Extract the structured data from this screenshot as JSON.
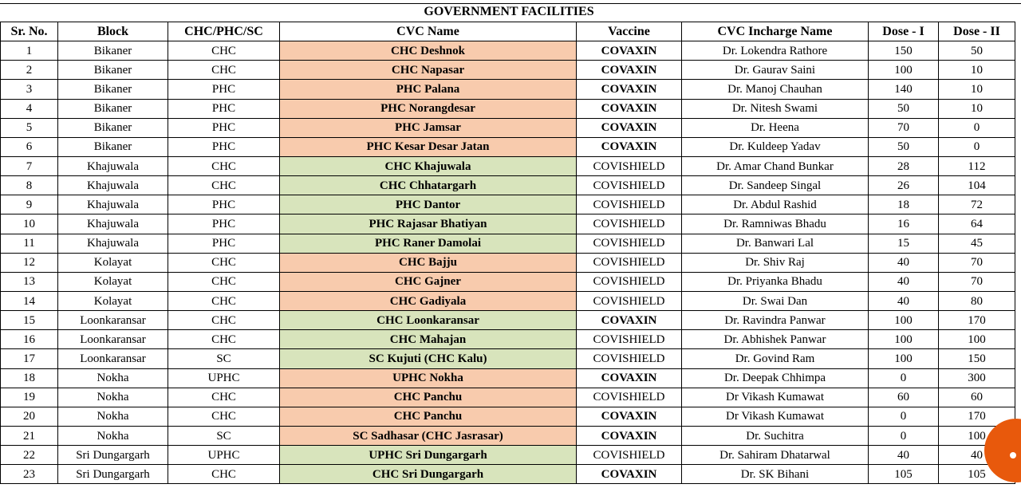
{
  "title": "GOVERNMENT FACILITIES",
  "headers": [
    "Sr. No.",
    "Block",
    "CHC/PHC/SC",
    "CVC Name",
    "Vaccine",
    "CVC Incharge Name",
    "Dose - I",
    "Dose - II"
  ],
  "colors": {
    "orange": "#f8cbad",
    "green": "#d8e4bc",
    "fab": "#e8590c"
  },
  "fab_icon": "share-icon",
  "rows": [
    {
      "sr": "1",
      "block": "Bikaner",
      "type": "CHC",
      "cvc": "CHC Deshnok",
      "vaccine": "COVAXIN",
      "incharge": "Dr. Lokendra Rathore",
      "d1": "150",
      "d2": "50",
      "shade": "orange"
    },
    {
      "sr": "2",
      "block": "Bikaner",
      "type": "CHC",
      "cvc": "CHC Napasar",
      "vaccine": "COVAXIN",
      "incharge": "Dr. Gaurav Saini",
      "d1": "100",
      "d2": "10",
      "shade": "orange"
    },
    {
      "sr": "3",
      "block": "Bikaner",
      "type": "PHC",
      "cvc": "PHC Palana",
      "vaccine": "COVAXIN",
      "incharge": "Dr. Manoj Chauhan",
      "d1": "140",
      "d2": "10",
      "shade": "orange"
    },
    {
      "sr": "4",
      "block": "Bikaner",
      "type": "PHC",
      "cvc": "PHC Norangdesar",
      "vaccine": "COVAXIN",
      "incharge": "Dr. Nitesh Swami",
      "d1": "50",
      "d2": "10",
      "shade": "orange"
    },
    {
      "sr": "5",
      "block": "Bikaner",
      "type": "PHC",
      "cvc": "PHC Jamsar",
      "vaccine": "COVAXIN",
      "incharge": "Dr. Heena",
      "d1": "70",
      "d2": "0",
      "shade": "orange"
    },
    {
      "sr": "6",
      "block": "Bikaner",
      "type": "PHC",
      "cvc": "PHC Kesar Desar Jatan",
      "vaccine": "COVAXIN",
      "incharge": "Dr. Kuldeep Yadav",
      "d1": "50",
      "d2": "0",
      "shade": "orange"
    },
    {
      "sr": "7",
      "block": "Khajuwala",
      "type": "CHC",
      "cvc": "CHC Khajuwala",
      "vaccine": "COVISHIELD",
      "incharge": "Dr. Amar Chand Bunkar",
      "d1": "28",
      "d2": "112",
      "shade": "green"
    },
    {
      "sr": "8",
      "block": "Khajuwala",
      "type": "CHC",
      "cvc": "CHC Chhatargarh",
      "vaccine": "COVISHIELD",
      "incharge": "Dr. Sandeep Singal",
      "d1": "26",
      "d2": "104",
      "shade": "green"
    },
    {
      "sr": "9",
      "block": "Khajuwala",
      "type": "PHC",
      "cvc": "PHC Dantor",
      "vaccine": "COVISHIELD",
      "incharge": "Dr. Abdul Rashid",
      "d1": "18",
      "d2": "72",
      "shade": "green"
    },
    {
      "sr": "10",
      "block": "Khajuwala",
      "type": "PHC",
      "cvc": "PHC Rajasar Bhatiyan",
      "vaccine": "COVISHIELD",
      "incharge": "Dr. Ramniwas Bhadu",
      "d1": "16",
      "d2": "64",
      "shade": "green"
    },
    {
      "sr": "11",
      "block": "Khajuwala",
      "type": "PHC",
      "cvc": "PHC Raner Damolai",
      "vaccine": "COVISHIELD",
      "incharge": "Dr. Banwari Lal",
      "d1": "15",
      "d2": "45",
      "shade": "green"
    },
    {
      "sr": "12",
      "block": "Kolayat",
      "type": "CHC",
      "cvc": "CHC Bajju",
      "vaccine": "COVISHIELD",
      "incharge": "Dr. Shiv Raj",
      "d1": "40",
      "d2": "70",
      "shade": "orange"
    },
    {
      "sr": "13",
      "block": "Kolayat",
      "type": "CHC",
      "cvc": "CHC Gajner",
      "vaccine": "COVISHIELD",
      "incharge": "Dr. Priyanka Bhadu",
      "d1": "40",
      "d2": "70",
      "shade": "orange"
    },
    {
      "sr": "14",
      "block": "Kolayat",
      "type": "CHC",
      "cvc": "CHC Gadiyala",
      "vaccine": "COVISHIELD",
      "incharge": "Dr. Swai Dan",
      "d1": "40",
      "d2": "80",
      "shade": "orange"
    },
    {
      "sr": "15",
      "block": "Loonkaransar",
      "type": "CHC",
      "cvc": "CHC Loonkaransar",
      "vaccine": "COVAXIN",
      "incharge": "Dr. Ravindra Panwar",
      "d1": "100",
      "d2": "170",
      "shade": "green"
    },
    {
      "sr": "16",
      "block": "Loonkaransar",
      "type": "CHC",
      "cvc": "CHC Mahajan",
      "vaccine": "COVISHIELD",
      "incharge": "Dr. Abhishek Panwar",
      "d1": "100",
      "d2": "100",
      "shade": "green"
    },
    {
      "sr": "17",
      "block": "Loonkaransar",
      "type": "SC",
      "cvc": "SC Kujuti (CHC Kalu)",
      "vaccine": "COVISHIELD",
      "incharge": "Dr. Govind Ram",
      "d1": "100",
      "d2": "150",
      "shade": "green"
    },
    {
      "sr": "18",
      "block": "Nokha",
      "type": "UPHC",
      "cvc": "UPHC Nokha",
      "vaccine": "COVAXIN",
      "incharge": "Dr. Deepak Chhimpa",
      "d1": "0",
      "d2": "300",
      "shade": "orange"
    },
    {
      "sr": "19",
      "block": "Nokha",
      "type": "CHC",
      "cvc": "CHC Panchu",
      "vaccine": "COVISHIELD",
      "incharge": "Dr Vikash Kumawat",
      "d1": "60",
      "d2": "60",
      "shade": "orange"
    },
    {
      "sr": "20",
      "block": "Nokha",
      "type": "CHC",
      "cvc": "CHC Panchu",
      "vaccine": "COVAXIN",
      "incharge": "Dr Vikash Kumawat",
      "d1": "0",
      "d2": "170",
      "shade": "orange"
    },
    {
      "sr": "21",
      "block": "Nokha",
      "type": "SC",
      "cvc": "SC Sadhasar (CHC Jasrasar)",
      "vaccine": "COVAXIN",
      "incharge": "Dr. Suchitra",
      "d1": "0",
      "d2": "100",
      "shade": "orange"
    },
    {
      "sr": "22",
      "block": "Sri Dungargarh",
      "type": "UPHC",
      "cvc": "UPHC Sri Dungargarh",
      "vaccine": "COVISHIELD",
      "incharge": "Dr. Sahiram Dhatarwal",
      "d1": "40",
      "d2": "40",
      "shade": "green"
    },
    {
      "sr": "23",
      "block": "Sri Dungargarh",
      "type": "CHC",
      "cvc": "CHC Sri Dungargarh",
      "vaccine": "COVAXIN",
      "incharge": "Dr. SK Bihani",
      "d1": "105",
      "d2": "105",
      "shade": "green"
    }
  ]
}
